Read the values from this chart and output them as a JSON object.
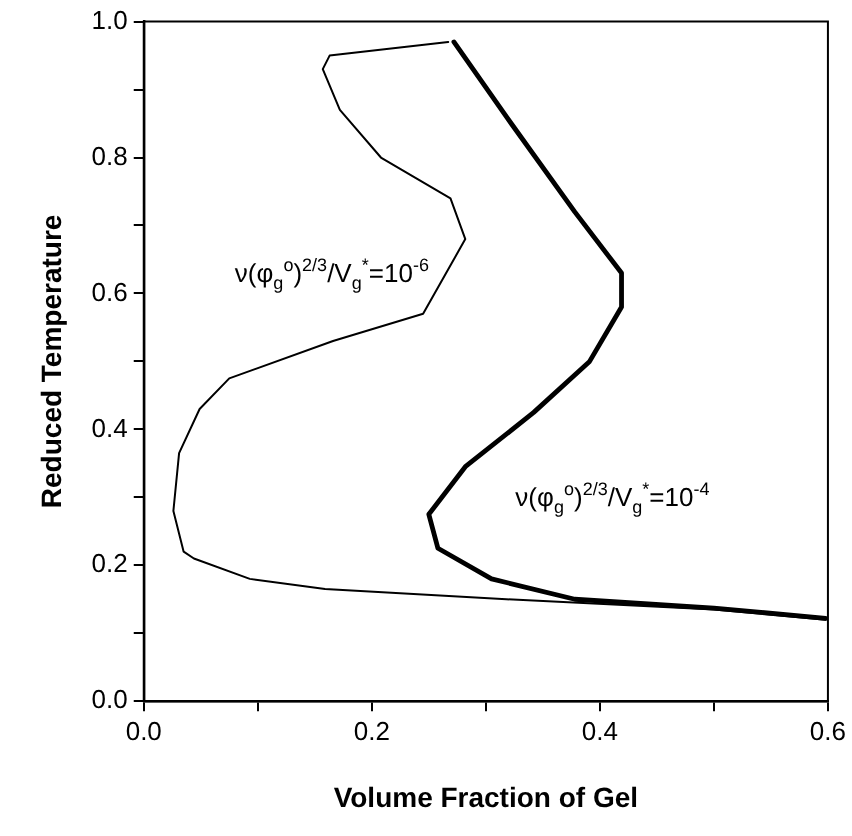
{
  "chart_data": {
    "type": "line",
    "xlabel": "Volume Fraction of Gel",
    "ylabel": "Reduced Temperature",
    "series": [
      {
        "color": "#000000",
        "x": [
          0.267,
          0.163,
          0.157,
          0.172,
          0.208,
          0.269,
          0.282,
          0.245,
          0.166,
          0.075,
          0.049,
          0.031,
          0.026,
          0.035,
          0.044,
          0.093,
          0.159,
          0.318,
          0.5,
          0.598
        ],
        "values": [
          0.97,
          0.95,
          0.93,
          0.87,
          0.8,
          0.74,
          0.68,
          0.57,
          0.53,
          0.475,
          0.43,
          0.365,
          0.28,
          0.22,
          0.21,
          0.18,
          0.165,
          0.15,
          0.135,
          0.12
        ]
      },
      {
        "color": "#000000",
        "x": [
          0.272,
          0.318,
          0.378,
          0.419,
          0.419,
          0.391,
          0.342,
          0.282,
          0.25,
          0.258,
          0.305,
          0.378,
          0.5,
          0.598
        ],
        "values": [
          0.97,
          0.86,
          0.72,
          0.63,
          0.58,
          0.5,
          0.425,
          0.345,
          0.275,
          0.225,
          0.18,
          0.15,
          0.137,
          0.122
        ]
      }
    ],
    "annotations": [
      "ν(φ$_{g}$$^{o}$)$^{2/3}$/V$_{g}$$^{*}$=10$^{-6}$",
      "ν(φ$_{g}$$^{o}$)$^{2/3}$/V$_{g}$$^{*}$=10$^{-4}$"
    ],
    "xlim": [
      0,
      0.6
    ],
    "ylim": [
      0,
      1
    ],
    "xticks": [
      {
        "value": 0,
        "label": "0.0"
      },
      {
        "value": 0.1,
        "label": null
      },
      {
        "value": 0.2,
        "label": "0.2"
      },
      {
        "value": 0.3,
        "label": null
      },
      {
        "value": 0.4,
        "label": "0.4"
      },
      {
        "value": 0.5,
        "label": null
      },
      {
        "value": 0.6,
        "label": "0.6"
      }
    ],
    "yticks": [
      {
        "value": 0,
        "label": "0.0"
      },
      {
        "value": 0.1,
        "label": null
      },
      {
        "value": 0.2,
        "label": "0.2"
      },
      {
        "value": 0.3,
        "label": null
      },
      {
        "value": 0.4,
        "label": "0.4"
      },
      {
        "value": 0.5,
        "label": null
      },
      {
        "value": 0.6,
        "label": "0.6"
      },
      {
        "value": 0.7,
        "label": null
      },
      {
        "value": 0.8,
        "label": "0.8"
      },
      {
        "value": 0.9,
        "label": null
      },
      {
        "value": 1,
        "label": "1.0"
      }
    ],
    "grid": false,
    "legend": false,
    "marker": "none",
    "line_style": "solid"
  }
}
